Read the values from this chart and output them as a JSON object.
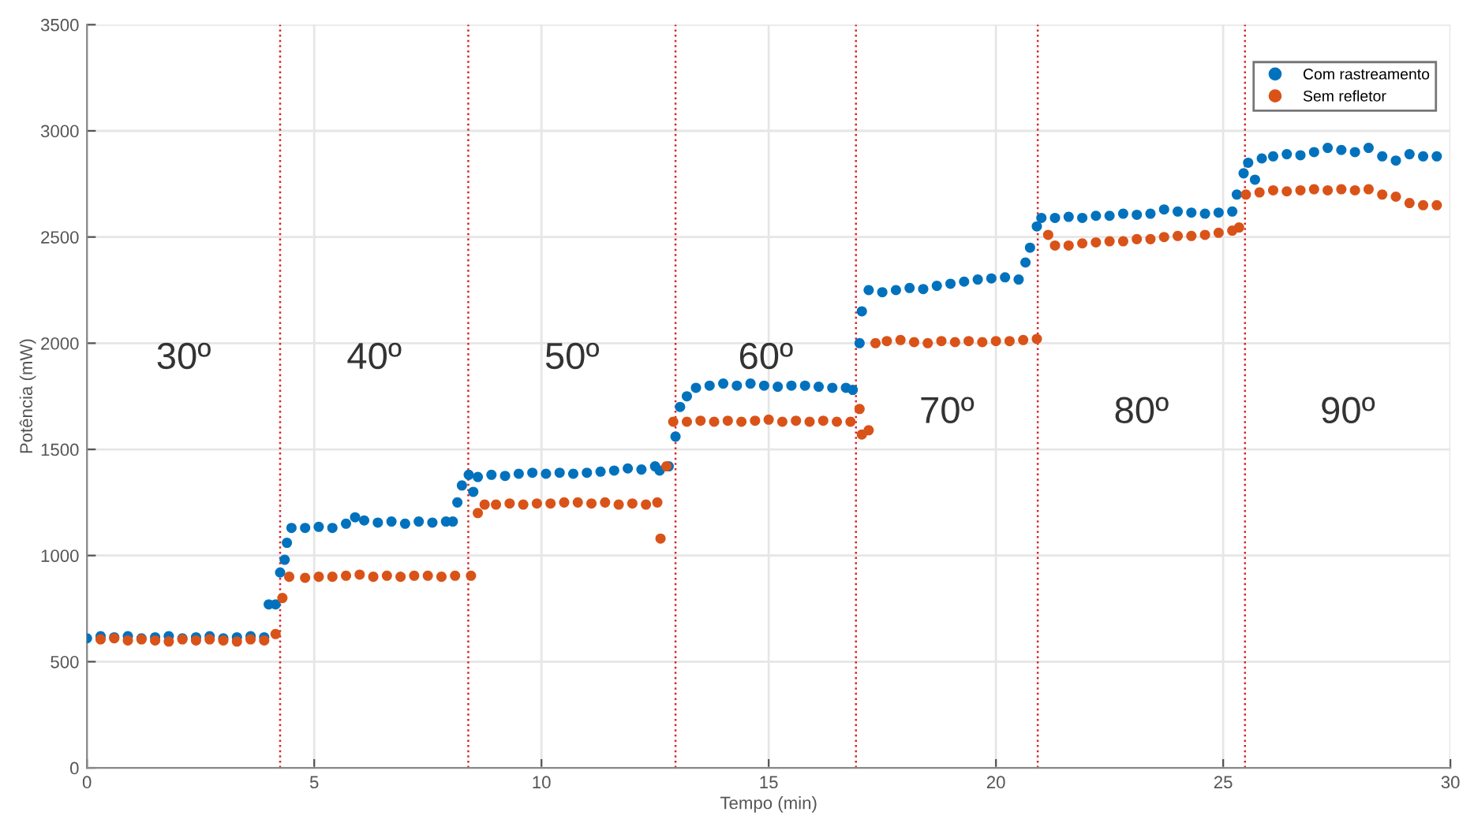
{
  "chart_data": {
    "type": "scatter",
    "xlabel": "Tempo (min)",
    "ylabel": "Potência (mW)",
    "xlim": [
      0,
      30
    ],
    "xticks": [
      0,
      5,
      10,
      15,
      20,
      25,
      30
    ],
    "ylim": [
      0,
      3500
    ],
    "yticks": [
      0,
      500,
      1000,
      1500,
      2000,
      2500,
      3000,
      3500
    ],
    "grid": true,
    "legend": "top right",
    "marker": "circle",
    "series": [
      {
        "name": "Com rastreamento",
        "color": "#0072bd",
        "x": [
          0,
          0.3,
          0.6,
          0.9,
          1.2,
          1.5,
          1.8,
          2.1,
          2.4,
          2.7,
          3.0,
          3.3,
          3.6,
          3.9,
          4.0,
          4.15,
          4.25,
          4.35,
          4.4,
          4.5,
          4.8,
          5.1,
          5.4,
          5.7,
          5.9,
          6.1,
          6.4,
          6.7,
          7.0,
          7.3,
          7.6,
          7.9,
          8.05,
          8.15,
          8.25,
          8.4,
          8.5,
          8.6,
          8.9,
          9.2,
          9.5,
          9.8,
          10.1,
          10.4,
          10.7,
          11.0,
          11.3,
          11.6,
          11.9,
          12.2,
          12.5,
          12.6,
          12.8,
          12.95,
          13.05,
          13.2,
          13.4,
          13.7,
          14.0,
          14.3,
          14.6,
          14.9,
          15.2,
          15.5,
          15.8,
          16.1,
          16.4,
          16.7,
          16.85,
          17.0,
          17.05,
          17.2,
          17.5,
          17.8,
          18.1,
          18.4,
          18.7,
          19.0,
          19.3,
          19.6,
          19.9,
          20.2,
          20.5,
          20.65,
          20.75,
          20.9,
          21.0,
          21.3,
          21.6,
          21.9,
          22.2,
          22.5,
          22.8,
          23.1,
          23.4,
          23.7,
          24.0,
          24.3,
          24.6,
          24.9,
          25.2,
          25.3,
          25.45,
          25.55,
          25.7,
          25.85,
          26.1,
          26.4,
          26.7,
          27.0,
          27.3,
          27.6,
          27.9,
          28.2,
          28.5,
          28.8,
          29.1,
          29.4,
          29.7
        ],
        "values": [
          610,
          620,
          615,
          620,
          610,
          615,
          620,
          610,
          615,
          620,
          610,
          615,
          620,
          615,
          770,
          770,
          920,
          980,
          1060,
          1130,
          1130,
          1135,
          1130,
          1150,
          1180,
          1165,
          1155,
          1160,
          1150,
          1160,
          1155,
          1160,
          1160,
          1250,
          1330,
          1380,
          1300,
          1370,
          1380,
          1375,
          1385,
          1390,
          1385,
          1390,
          1385,
          1390,
          1395,
          1400,
          1410,
          1405,
          1420,
          1400,
          1420,
          1560,
          1700,
          1750,
          1790,
          1800,
          1810,
          1800,
          1810,
          1800,
          1795,
          1800,
          1800,
          1795,
          1790,
          1790,
          1780,
          2000,
          2150,
          2250,
          2240,
          2250,
          2260,
          2255,
          2270,
          2280,
          2290,
          2300,
          2305,
          2310,
          2300,
          2380,
          2450,
          2550,
          2590,
          2590,
          2595,
          2590,
          2600,
          2600,
          2610,
          2605,
          2610,
          2630,
          2620,
          2615,
          2610,
          2615,
          2620,
          2700,
          2800,
          2850,
          2770,
          2870,
          2880,
          2890,
          2885,
          2900,
          2920,
          2910,
          2900,
          2920,
          2880,
          2860,
          2890,
          2880,
          2880
        ]
      },
      {
        "name": "Sem refletor",
        "color": "#d95319",
        "x": [
          0.3,
          0.6,
          0.9,
          1.2,
          1.5,
          1.8,
          2.1,
          2.4,
          2.7,
          3.0,
          3.3,
          3.6,
          3.9,
          4.15,
          4.3,
          4.45,
          4.8,
          5.1,
          5.4,
          5.7,
          6.0,
          6.3,
          6.6,
          6.9,
          7.2,
          7.5,
          7.8,
          8.1,
          8.45,
          8.6,
          8.75,
          9.0,
          9.3,
          9.6,
          9.9,
          10.2,
          10.5,
          10.8,
          11.1,
          11.4,
          11.7,
          12.0,
          12.3,
          12.55,
          12.62,
          12.75,
          12.9,
          13.2,
          13.5,
          13.8,
          14.1,
          14.4,
          14.7,
          15.0,
          15.3,
          15.6,
          15.9,
          16.2,
          16.5,
          16.8,
          17.0,
          17.05,
          17.2,
          17.35,
          17.6,
          17.9,
          18.2,
          18.5,
          18.8,
          19.1,
          19.4,
          19.7,
          20.0,
          20.3,
          20.6,
          20.9,
          21.15,
          21.3,
          21.6,
          21.9,
          22.2,
          22.5,
          22.8,
          23.1,
          23.4,
          23.7,
          24.0,
          24.3,
          24.6,
          24.9,
          25.2,
          25.35,
          25.5,
          25.8,
          26.1,
          26.4,
          26.7,
          27.0,
          27.3,
          27.6,
          27.9,
          28.2,
          28.5,
          28.8,
          29.1,
          29.4,
          29.7
        ],
        "values": [
          605,
          610,
          600,
          605,
          600,
          595,
          605,
          600,
          605,
          600,
          595,
          605,
          600,
          630,
          800,
          900,
          895,
          900,
          900,
          905,
          910,
          900,
          905,
          900,
          905,
          905,
          900,
          905,
          905,
          1200,
          1240,
          1240,
          1245,
          1240,
          1245,
          1245,
          1250,
          1250,
          1245,
          1250,
          1240,
          1245,
          1240,
          1250,
          1080,
          1420,
          1630,
          1630,
          1635,
          1630,
          1635,
          1630,
          1635,
          1640,
          1630,
          1635,
          1630,
          1635,
          1630,
          1630,
          1690,
          1570,
          1590,
          2000,
          2010,
          2015,
          2005,
          2000,
          2010,
          2005,
          2010,
          2005,
          2010,
          2010,
          2015,
          2020,
          2510,
          2460,
          2460,
          2470,
          2475,
          2480,
          2480,
          2490,
          2490,
          2500,
          2505,
          2505,
          2510,
          2520,
          2530,
          2545,
          2700,
          2710,
          2720,
          2715,
          2720,
          2725,
          2720,
          2725,
          2720,
          2725,
          2700,
          2690,
          2660,
          2650,
          2650
        ]
      }
    ],
    "ref_lines": [
      {
        "axis": "x",
        "value": 4.25,
        "color": "#d62728",
        "line_style": "dotted"
      },
      {
        "axis": "x",
        "value": 8.39,
        "color": "#d62728",
        "line_style": "dotted"
      },
      {
        "axis": "x",
        "value": 12.95,
        "color": "#d62728",
        "line_style": "dotted"
      },
      {
        "axis": "x",
        "value": 16.92,
        "color": "#d62728",
        "line_style": "dotted"
      },
      {
        "axis": "x",
        "value": 20.92,
        "color": "#d62728",
        "line_style": "dotted"
      },
      {
        "axis": "x",
        "value": 25.48,
        "color": "#d62728",
        "line_style": "dotted"
      }
    ],
    "annotations": [
      "30º",
      "40º",
      "50º",
      "60º",
      "70º",
      "80º",
      "90º"
    ]
  }
}
